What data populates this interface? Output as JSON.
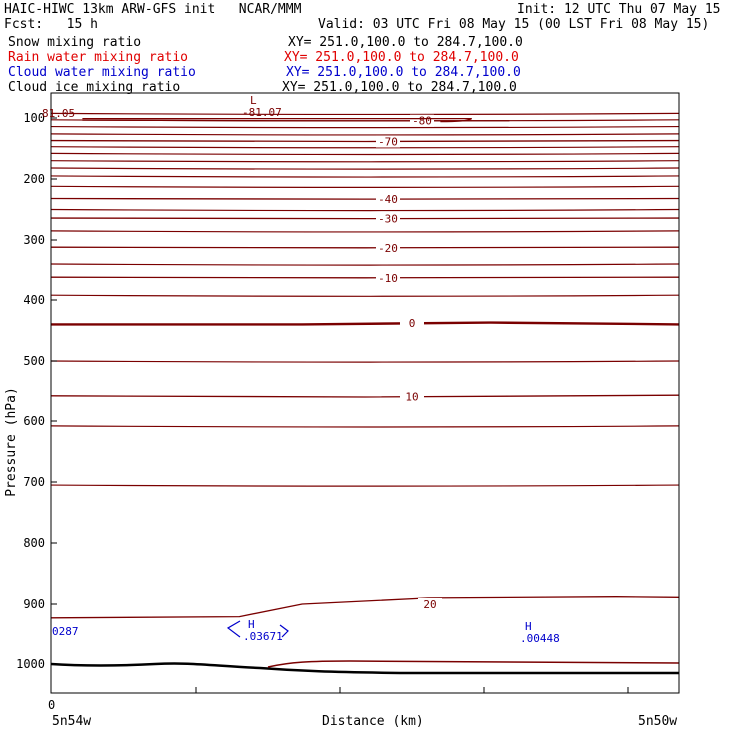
{
  "header": {
    "title": "HAIC-HIWC 13km ARW-GFS init   NCAR/MMM",
    "init": "Init: 12 UTC Thu 07 May 15",
    "fcst": "Fcst:   15 h",
    "valid": "Valid: 03 UTC Fri 08 May 15 (00 LST Fri 08 May 15)"
  },
  "fields": [
    {
      "name": "Snow mixing ratio",
      "xy": "XY= 251.0,100.0 to 284.7,100.0",
      "color": "#000000"
    },
    {
      "name": "Rain water mixing ratio",
      "xy": "XY= 251.0,100.0 to 284.7,100.0",
      "color": "#e00000"
    },
    {
      "name": "Cloud water mixing ratio",
      "xy": "XY= 251.0,100.0 to 284.7,100.0",
      "color": "#0000cc"
    },
    {
      "name": "Cloud ice mixing ratio",
      "xy": "XY= 251.0,100.0 to 284.7,100.0",
      "color": "#000000"
    }
  ],
  "chart_data": {
    "type": "line",
    "title": "",
    "xlabel": "Distance (km)",
    "ylabel": "Pressure (hPa)",
    "y_ticks": [
      100,
      200,
      300,
      400,
      500,
      600,
      700,
      800,
      900,
      1000
    ],
    "y_tick_labels": [
      "100",
      "200",
      "300",
      "400",
      "500",
      "600",
      "700",
      "800",
      "900",
      "1000"
    ],
    "x_ticks": [
      0
    ],
    "x_tick_labels": [
      "0"
    ],
    "x_left_label": "5n54w",
    "x_right_label": "5n50w",
    "ylim": [
      1050,
      65
    ],
    "grid": false,
    "temperature_contours": [
      {
        "label": "-80",
        "points": [
          [
            0.05,
            103.5
          ],
          [
            0.35,
            104.5
          ],
          [
            0.6,
            104.5
          ],
          [
            0.73,
            104.5
          ]
        ]
      },
      {
        "label": "-70",
        "points": [
          [
            0,
            137
          ],
          [
            0.5,
            138.5
          ],
          [
            1.0,
            137
          ]
        ]
      },
      {
        "label": "-40",
        "points": [
          [
            0,
            232
          ],
          [
            0.5,
            233
          ],
          [
            1.0,
            232
          ]
        ]
      },
      {
        "label": "-30",
        "points": [
          [
            0,
            264
          ],
          [
            0.5,
            265
          ],
          [
            1.0,
            264
          ]
        ]
      },
      {
        "label": "-20",
        "points": [
          [
            0,
            312
          ],
          [
            0.5,
            313
          ],
          [
            1.0,
            312
          ]
        ]
      },
      {
        "label": "-10",
        "points": [
          [
            0,
            362
          ],
          [
            0.5,
            363
          ],
          [
            1.0,
            362
          ]
        ]
      },
      {
        "label": "0",
        "points": [
          [
            0,
            440
          ],
          [
            0.4,
            440
          ],
          [
            0.7,
            437
          ],
          [
            1.0,
            440
          ]
        ]
      },
      {
        "label": "10",
        "points": [
          [
            0,
            558
          ],
          [
            0.5,
            560
          ],
          [
            1.0,
            557
          ]
        ]
      },
      {
        "label": "20",
        "points": [
          [
            0,
            923
          ],
          [
            0.3,
            921
          ],
          [
            0.4,
            900
          ],
          [
            0.6,
            890
          ],
          [
            0.9,
            888
          ],
          [
            1.0,
            889
          ]
        ]
      }
    ],
    "extrema_labels": [
      {
        "kind": "L",
        "value": "-81.07",
        "x": 0.3,
        "p": 107
      },
      {
        "kind": "H",
        "value": ".03671",
        "x": 0.3,
        "p": 935
      },
      {
        "kind": "H",
        "value": ".00448",
        "x": 0.75,
        "p": 938
      }
    ],
    "edge_labels": [
      {
        "value": "81.05",
        "p": 106
      },
      {
        "value": "0287",
        "p": 937
      }
    ]
  }
}
